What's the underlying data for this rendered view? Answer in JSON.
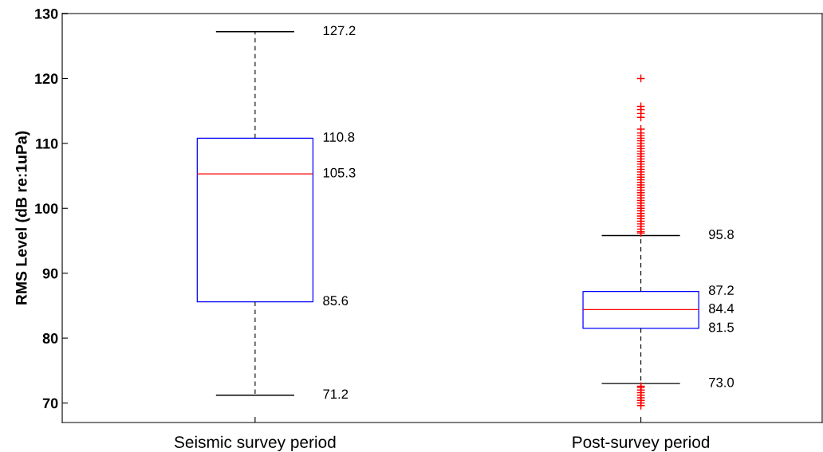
{
  "chart_data": {
    "type": "box",
    "ylabel": "RMS Level (dB re:1uPa)",
    "categories": [
      "Seismic survey period",
      "Post-survey period"
    ],
    "ylim": [
      67,
      130
    ],
    "yticks": [
      70,
      80,
      90,
      100,
      110,
      120,
      130
    ],
    "grid": false,
    "marker": "cross",
    "series": [
      {
        "color": "#0000ff",
        "boxes": [
          {
            "low": 71.2,
            "q1": 85.6,
            "median": 105.3,
            "q3": 110.8,
            "high": 127.2
          },
          {
            "low": 73.0,
            "q1": 81.5,
            "median": 84.4,
            "q3": 87.2,
            "high": 95.8,
            "outliers": [
              96.2,
              96.4,
              96.8,
              97.2,
              97.6,
              98.0,
              98.4,
              98.8,
              99.2,
              99.6,
              100.0,
              100.4,
              100.8,
              101.2,
              101.6,
              102.0,
              102.4,
              102.8,
              103.2,
              103.6,
              104.0,
              104.4,
              104.8,
              105.2,
              105.6,
              106.0,
              106.4,
              106.8,
              107.2,
              107.6,
              108.0,
              108.4,
              108.8,
              109.2,
              109.6,
              110.0,
              110.4,
              110.8,
              111.2,
              111.6,
              112.2,
              114.0,
              114.6,
              115.2,
              115.7,
              120.0,
              69.6,
              70.0,
              70.4,
              70.8,
              71.2,
              71.6,
              72.0,
              72.4,
              72.6
            ]
          }
        ]
      }
    ],
    "annotations": [
      "127.2",
      "110.8",
      "105.3",
      "85.6",
      "71.2",
      "95.8",
      "87.2",
      "84.4",
      "81.5",
      "73.0"
    ]
  }
}
